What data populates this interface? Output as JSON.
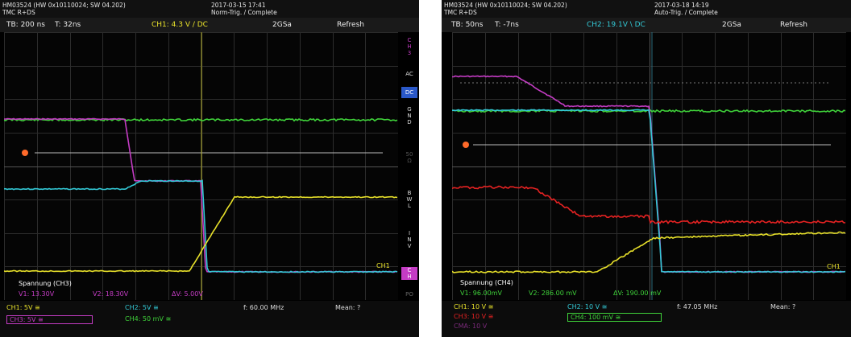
{
  "left": {
    "header_line1": "HM03524 (HW 0x10110024; SW 04.202)",
    "header_line2": "TMC R+DS",
    "datetime": "2017-03-15 17:41",
    "trigger_status": "Norm-Trig. / Complete",
    "timebase": "TB: 200 ns",
    "trigger_time": "T: 32ns",
    "trigger_channel": "CH1: 4.3 V / DC",
    "sample_rate": "2GSa",
    "mode": "Refresh",
    "side_buttons": [
      "C\nH\n3",
      "AC",
      "DC",
      "G\nN\nD",
      "50\nΩ",
      "B\nW\nL",
      "I\nN\nV",
      "C\nH",
      "PO"
    ],
    "meas_title": "Spannung (CH3)",
    "v1": "V1: 13.30V",
    "v2": "V2: 18.30V",
    "dv": "ΔV: 5.00V",
    "ch_label": "CH1",
    "ch1_scale": "CH1: 5V ≅",
    "ch2_scale": "CH2: 5V ≅",
    "ch3_scale": "CH3: 5V ≅",
    "ch4_scale": "CH4: 50 mV ≅",
    "frequency": "f: 60.00 MHz",
    "mean": "Mean: ?"
  },
  "right": {
    "header_line1": "HM03524 (HW 0x10110024; SW 04.202)",
    "header_line2": "TMC R+DS",
    "datetime": "2017-03-18 14:19",
    "trigger_status": "Auto-Trig. / Complete",
    "timebase": "TB: 50ns",
    "trigger_time": "T: -7ns",
    "trigger_channel": "CH2: 19.1V \\ DC",
    "sample_rate": "2GSa",
    "mode": "Refresh",
    "meas_title": "Spannung (CH4)",
    "v1": "V1: 96.00mV",
    "v2": "V2: 286.00 mV",
    "dv": "ΔV: 190.00 mV",
    "ch_label": "CH1",
    "ch1_scale": "CH1: 10 V ≅",
    "ch2_scale": "CH2: 10 V ≅",
    "ch3_scale": "CH3: 10 V ≅",
    "ch4_scale": "CH4: 100 mV ≅",
    "math_label": "CMA: 10 V",
    "frequency": "f: 47.05 MHz",
    "mean": "Mean: ?"
  },
  "colors": {
    "ch1": "#e7e02a",
    "ch2": "#33c9d6",
    "ch3": "#c43cc4",
    "ch4": "#3fd23a",
    "red": "#e52222",
    "marker": "#ff6a2a"
  }
}
